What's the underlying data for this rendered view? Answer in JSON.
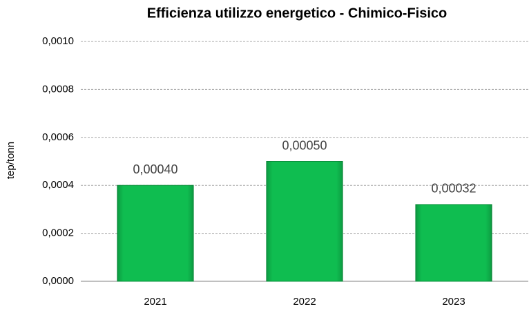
{
  "chart_data": {
    "type": "bar",
    "title": "Efficienza utilizzo energetico - Chimico-Fisico",
    "y_label": "tep/tonn",
    "categories": [
      "2021",
      "2022",
      "2023"
    ],
    "values": [
      0.0004,
      0.0005,
      0.00032
    ],
    "value_labels": [
      "0,00040",
      "0,00050",
      "0,00032"
    ],
    "color": "#0fbd50",
    "ylim": [
      0,
      0.001
    ],
    "yticks": [
      {
        "value": 0,
        "label": "0,0000"
      },
      {
        "value": 0.0002,
        "label": "0,0002"
      },
      {
        "value": 0.0004,
        "label": "0,0004"
      },
      {
        "value": 0.0006,
        "label": "0,0006"
      },
      {
        "value": 0.0008,
        "label": "0,0008"
      },
      {
        "value": 0.001,
        "label": "0,0010"
      }
    ],
    "grid": true
  }
}
